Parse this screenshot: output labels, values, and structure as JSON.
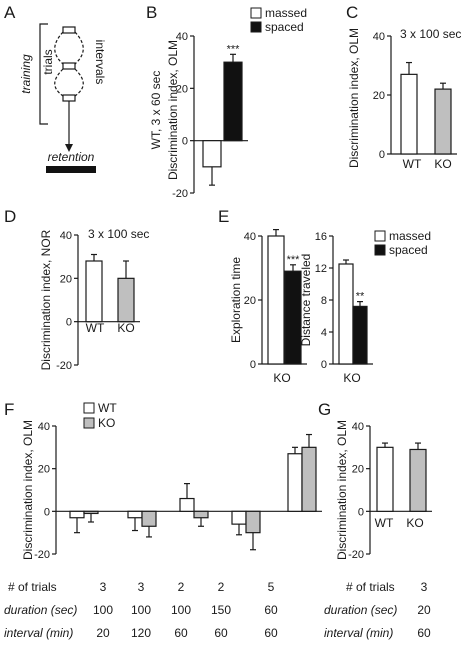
{
  "panel_labels": [
    "A",
    "B",
    "C",
    "D",
    "E",
    "F",
    "G"
  ],
  "schematic": {
    "training": "training",
    "trials": "trials",
    "intervals": "intervals",
    "retention": "retention"
  },
  "legends": {
    "b": [
      "massed",
      "spaced"
    ],
    "e": [
      "massed",
      "spaced"
    ],
    "f": [
      "WT",
      "KO"
    ]
  },
  "conditions": {
    "c": "3 x 100 sec",
    "d": "3 x 100 sec"
  },
  "table_f": {
    "row_labels": [
      "# of trials",
      "duration (sec)",
      "interval (min)"
    ],
    "columns": [
      [
        "3",
        "100",
        "20"
      ],
      [
        "3",
        "100",
        "120"
      ],
      [
        "2",
        "100",
        "60"
      ],
      [
        "2",
        "150",
        "60"
      ],
      [
        "5",
        "60",
        "60"
      ]
    ]
  },
  "table_g": {
    "row_labels": [
      "# of trials",
      "duration (sec)",
      "interval (min)"
    ],
    "columns": [
      [
        "3",
        "20",
        "60"
      ]
    ]
  },
  "colors": {
    "spaced": "#111111",
    "ko": "#bfbfbf",
    "massed": "#ffffff",
    "wt": "#ffffff"
  },
  "chart_data": [
    {
      "id": "b",
      "type": "bar",
      "ylabel": "WT, 3 x 60 sec\nDiscrimination index, OLM",
      "ylim": [
        -20,
        40
      ],
      "yticks": [
        -20,
        0,
        20,
        40
      ],
      "series": [
        {
          "name": "massed",
          "values": [
            -10
          ],
          "errors": [
            7
          ]
        },
        {
          "name": "spaced",
          "values": [
            30
          ],
          "errors": [
            3
          ]
        }
      ],
      "annotations": [
        "***"
      ]
    },
    {
      "id": "c",
      "type": "bar",
      "ylabel": "Discrimination index, OLM",
      "ylim": [
        0,
        40
      ],
      "yticks": [
        0,
        20,
        40
      ],
      "categories": [
        "WT",
        "KO"
      ],
      "values": [
        27,
        22
      ],
      "errors": [
        4,
        2
      ]
    },
    {
      "id": "d",
      "type": "bar",
      "ylabel": "Discrimination index, NOR",
      "ylim": [
        -20,
        40
      ],
      "yticks": [
        -20,
        0,
        20,
        40
      ],
      "categories": [
        "WT",
        "KO"
      ],
      "values": [
        28,
        20
      ],
      "errors": [
        3,
        8
      ]
    },
    {
      "id": "e1",
      "type": "bar",
      "ylabel": "Exploration time",
      "ylim": [
        0,
        40
      ],
      "yticks": [
        0,
        20,
        40
      ],
      "categories": [
        "KO"
      ],
      "series": [
        {
          "name": "massed",
          "values": [
            40
          ],
          "errors": [
            2
          ]
        },
        {
          "name": "spaced",
          "values": [
            29
          ],
          "errors": [
            2
          ]
        }
      ],
      "annotations": [
        "***"
      ]
    },
    {
      "id": "e2",
      "type": "bar",
      "ylabel": "Distance traveled",
      "ylim": [
        0,
        16
      ],
      "yticks": [
        0,
        4,
        8,
        12,
        16
      ],
      "categories": [
        "KO"
      ],
      "series": [
        {
          "name": "massed",
          "values": [
            12.5
          ],
          "errors": [
            0.5
          ]
        },
        {
          "name": "spaced",
          "values": [
            7.2
          ],
          "errors": [
            0.6
          ]
        }
      ],
      "annotations": [
        "**"
      ]
    },
    {
      "id": "f",
      "type": "bar",
      "ylabel": "Discrimination index, OLM",
      "ylim": [
        -20,
        40
      ],
      "yticks": [
        -20,
        0,
        20,
        40
      ],
      "series": [
        {
          "name": "WT",
          "values": [
            -3,
            -3,
            6,
            -6,
            27
          ],
          "errors": [
            7,
            6,
            7,
            5,
            3
          ]
        },
        {
          "name": "KO",
          "values": [
            -1,
            -7,
            -3,
            -10,
            30
          ],
          "errors": [
            4,
            5,
            4,
            8,
            6
          ]
        }
      ]
    },
    {
      "id": "g",
      "type": "bar",
      "ylabel": "Discrimination index, OLM",
      "ylim": [
        -20,
        40
      ],
      "yticks": [
        -20,
        0,
        20,
        40
      ],
      "categories": [
        "WT",
        "KO"
      ],
      "values": [
        30,
        29
      ],
      "errors": [
        2,
        3
      ]
    }
  ]
}
